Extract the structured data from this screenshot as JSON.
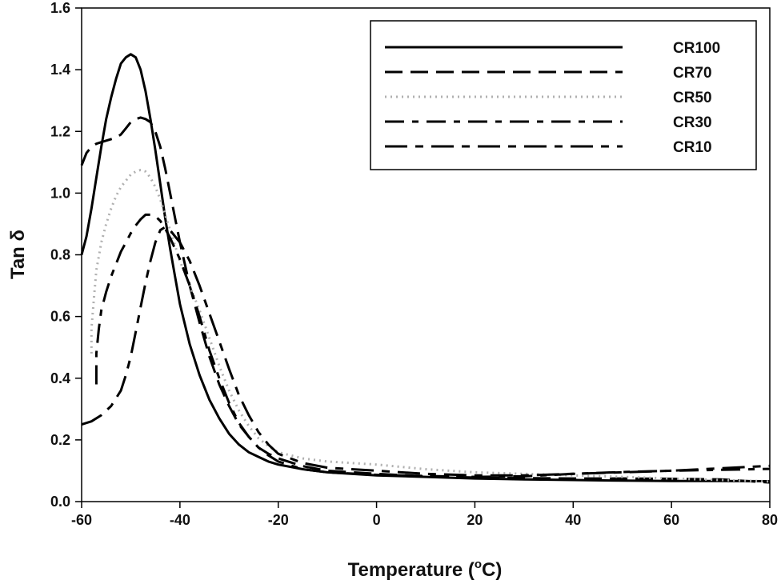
{
  "chart_data": {
    "type": "line",
    "xlabel_main": "Temperature (",
    "xlabel_sup": "o",
    "xlabel_end": "C)",
    "ylabel": "Tan δ",
    "xlim": [
      -60,
      80
    ],
    "ylim": [
      0,
      1.6
    ],
    "xticks": [
      -60,
      -40,
      -20,
      0,
      20,
      40,
      60,
      80
    ],
    "yticks": [
      "0.0",
      "0.2",
      "0.4",
      "0.6",
      "0.8",
      "1.0",
      "1.2",
      "1.4",
      "1.6"
    ],
    "legend_position": "top-right",
    "series": [
      {
        "name": "CR100",
        "color": "#000000",
        "dash": "",
        "width": 3,
        "points": [
          [
            -60,
            0.8
          ],
          [
            -59,
            0.86
          ],
          [
            -58,
            0.95
          ],
          [
            -57,
            1.05
          ],
          [
            -56,
            1.15
          ],
          [
            -55,
            1.24
          ],
          [
            -54,
            1.31
          ],
          [
            -53,
            1.37
          ],
          [
            -52,
            1.42
          ],
          [
            -51,
            1.44
          ],
          [
            -50,
            1.45
          ],
          [
            -49,
            1.44
          ],
          [
            -48,
            1.4
          ],
          [
            -47,
            1.33
          ],
          [
            -46,
            1.24
          ],
          [
            -45,
            1.14
          ],
          [
            -44,
            1.03
          ],
          [
            -43,
            0.92
          ],
          [
            -42,
            0.82
          ],
          [
            -41,
            0.73
          ],
          [
            -40,
            0.64
          ],
          [
            -38,
            0.51
          ],
          [
            -36,
            0.41
          ],
          [
            -34,
            0.33
          ],
          [
            -32,
            0.27
          ],
          [
            -30,
            0.22
          ],
          [
            -28,
            0.185
          ],
          [
            -26,
            0.16
          ],
          [
            -24,
            0.145
          ],
          [
            -22,
            0.13
          ],
          [
            -20,
            0.12
          ],
          [
            -15,
            0.105
          ],
          [
            -10,
            0.095
          ],
          [
            0,
            0.085
          ],
          [
            10,
            0.08
          ],
          [
            20,
            0.075
          ],
          [
            30,
            0.072
          ],
          [
            40,
            0.07
          ],
          [
            50,
            0.068
          ],
          [
            60,
            0.067
          ],
          [
            70,
            0.067
          ],
          [
            80,
            0.066
          ]
        ]
      },
      {
        "name": "CR70",
        "color": "#000000",
        "dash": "22,10",
        "width": 3,
        "points": [
          [
            -60,
            1.09
          ],
          [
            -59,
            1.13
          ],
          [
            -58,
            1.15
          ],
          [
            -57,
            1.16
          ],
          [
            -56,
            1.165
          ],
          [
            -55,
            1.17
          ],
          [
            -54,
            1.175
          ],
          [
            -53,
            1.18
          ],
          [
            -52,
            1.19
          ],
          [
            -51,
            1.21
          ],
          [
            -50,
            1.23
          ],
          [
            -49,
            1.24
          ],
          [
            -48,
            1.245
          ],
          [
            -47,
            1.24
          ],
          [
            -46,
            1.23
          ],
          [
            -45,
            1.2
          ],
          [
            -44,
            1.15
          ],
          [
            -43,
            1.08
          ],
          [
            -42,
            1.0
          ],
          [
            -41,
            0.92
          ],
          [
            -40,
            0.84
          ],
          [
            -38,
            0.7
          ],
          [
            -36,
            0.58
          ],
          [
            -34,
            0.47
          ],
          [
            -32,
            0.38
          ],
          [
            -30,
            0.31
          ],
          [
            -28,
            0.25
          ],
          [
            -26,
            0.21
          ],
          [
            -24,
            0.175
          ],
          [
            -22,
            0.155
          ],
          [
            -20,
            0.14
          ],
          [
            -15,
            0.115
          ],
          [
            -10,
            0.1
          ],
          [
            0,
            0.09
          ],
          [
            10,
            0.082
          ],
          [
            20,
            0.078
          ],
          [
            30,
            0.076
          ],
          [
            40,
            0.075
          ],
          [
            50,
            0.075
          ],
          [
            60,
            0.074
          ],
          [
            70,
            0.072
          ],
          [
            80,
            0.062
          ]
        ]
      },
      {
        "name": "CR50",
        "color": "#b0b0b0",
        "dash": "2,5",
        "width": 3,
        "points": [
          [
            -58,
            0.48
          ],
          [
            -58,
            0.56
          ],
          [
            -57.5,
            0.66
          ],
          [
            -57,
            0.75
          ],
          [
            -56,
            0.84
          ],
          [
            -55,
            0.9
          ],
          [
            -54,
            0.95
          ],
          [
            -53,
            0.99
          ],
          [
            -52,
            1.02
          ],
          [
            -51,
            1.04
          ],
          [
            -50,
            1.06
          ],
          [
            -49,
            1.07
          ],
          [
            -48,
            1.075
          ],
          [
            -47,
            1.07
          ],
          [
            -46,
            1.05
          ],
          [
            -45,
            1.02
          ],
          [
            -44,
            0.98
          ],
          [
            -43,
            0.93
          ],
          [
            -42,
            0.88
          ],
          [
            -41,
            0.83
          ],
          [
            -40,
            0.78
          ],
          [
            -38,
            0.7
          ],
          [
            -36,
            0.62
          ],
          [
            -34,
            0.53
          ],
          [
            -32,
            0.44
          ],
          [
            -30,
            0.36
          ],
          [
            -28,
            0.295
          ],
          [
            -26,
            0.245
          ],
          [
            -24,
            0.205
          ],
          [
            -22,
            0.18
          ],
          [
            -20,
            0.16
          ],
          [
            -15,
            0.14
          ],
          [
            -10,
            0.13
          ],
          [
            0,
            0.12
          ],
          [
            10,
            0.105
          ],
          [
            20,
            0.095
          ],
          [
            30,
            0.09
          ],
          [
            40,
            0.085
          ],
          [
            50,
            0.08
          ],
          [
            60,
            0.075
          ],
          [
            70,
            0.07
          ],
          [
            80,
            0.065
          ]
        ]
      },
      {
        "name": "CR30",
        "color": "#000000",
        "dash": "24,10,8,10",
        "width": 3,
        "points": [
          [
            -57,
            0.38
          ],
          [
            -57,
            0.48
          ],
          [
            -56.5,
            0.56
          ],
          [
            -56,
            0.62
          ],
          [
            -55,
            0.68
          ],
          [
            -54,
            0.73
          ],
          [
            -53,
            0.77
          ],
          [
            -52,
            0.81
          ],
          [
            -51,
            0.84
          ],
          [
            -50,
            0.87
          ],
          [
            -49,
            0.895
          ],
          [
            -48,
            0.915
          ],
          [
            -47,
            0.93
          ],
          [
            -46,
            0.93
          ],
          [
            -45,
            0.925
          ],
          [
            -44,
            0.91
          ],
          [
            -43,
            0.885
          ],
          [
            -42,
            0.855
          ],
          [
            -41,
            0.82
          ],
          [
            -40,
            0.785
          ],
          [
            -38,
            0.7
          ],
          [
            -36,
            0.6
          ],
          [
            -34,
            0.49
          ],
          [
            -32,
            0.4
          ],
          [
            -30,
            0.32
          ],
          [
            -28,
            0.255
          ],
          [
            -26,
            0.21
          ],
          [
            -24,
            0.175
          ],
          [
            -22,
            0.15
          ],
          [
            -20,
            0.13
          ],
          [
            -15,
            0.105
          ],
          [
            -10,
            0.095
          ],
          [
            0,
            0.087
          ],
          [
            10,
            0.083
          ],
          [
            20,
            0.08
          ],
          [
            30,
            0.082
          ],
          [
            40,
            0.09
          ],
          [
            50,
            0.096
          ],
          [
            60,
            0.1
          ],
          [
            70,
            0.103
          ],
          [
            80,
            0.106
          ]
        ]
      },
      {
        "name": "CR10",
        "color": "#000000",
        "dash": "28,10,10,10",
        "width": 3,
        "points": [
          [
            -60,
            0.25
          ],
          [
            -58,
            0.26
          ],
          [
            -56,
            0.28
          ],
          [
            -54,
            0.31
          ],
          [
            -52,
            0.36
          ],
          [
            -51,
            0.41
          ],
          [
            -50,
            0.47
          ],
          [
            -49,
            0.55
          ],
          [
            -48,
            0.63
          ],
          [
            -47,
            0.71
          ],
          [
            -46,
            0.78
          ],
          [
            -45,
            0.84
          ],
          [
            -44,
            0.88
          ],
          [
            -43,
            0.89
          ],
          [
            -42,
            0.88
          ],
          [
            -41,
            0.86
          ],
          [
            -40,
            0.84
          ],
          [
            -38,
            0.78
          ],
          [
            -36,
            0.7
          ],
          [
            -34,
            0.61
          ],
          [
            -32,
            0.52
          ],
          [
            -30,
            0.43
          ],
          [
            -28,
            0.345
          ],
          [
            -26,
            0.28
          ],
          [
            -24,
            0.225
          ],
          [
            -22,
            0.185
          ],
          [
            -20,
            0.155
          ],
          [
            -15,
            0.125
          ],
          [
            -10,
            0.11
          ],
          [
            0,
            0.1
          ],
          [
            10,
            0.09
          ],
          [
            20,
            0.085
          ],
          [
            30,
            0.085
          ],
          [
            40,
            0.09
          ],
          [
            50,
            0.095
          ],
          [
            60,
            0.1
          ],
          [
            70,
            0.108
          ],
          [
            80,
            0.116
          ]
        ]
      }
    ]
  }
}
